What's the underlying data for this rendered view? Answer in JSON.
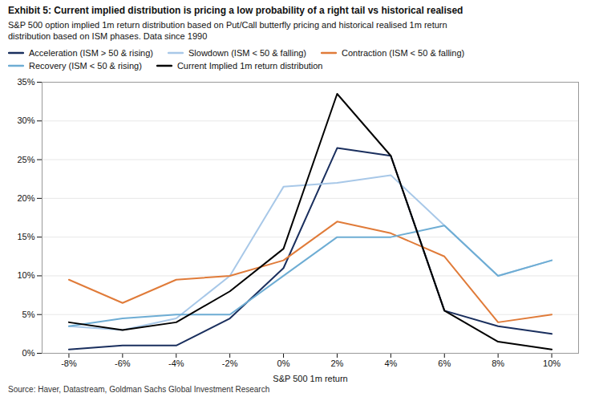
{
  "chart_data": {
    "type": "line",
    "title": "Exhibit 5: Current implied distribution is pricing a low probability of a right tail vs historical realised",
    "subtitle": "S&P 500 option implied 1m return distribution based on Put/Call butterfly pricing and historical realised 1m return\ndistribution based on ISM phases. Data since 1990",
    "source": "Source: Haver, Datastream, Goldman Sachs Global Investment Research",
    "xlabel": "S&P 500 1m return",
    "x": [
      -8,
      -6,
      -4,
      -2,
      0,
      2,
      4,
      6,
      8,
      10
    ],
    "series": [
      {
        "name": "Acceleration (ISM > 50 & rising)",
        "color": "#1a2f5e",
        "values": [
          0.5,
          1.0,
          1.0,
          4.5,
          11.0,
          26.5,
          25.5,
          5.5,
          3.5,
          2.5
        ]
      },
      {
        "name": "Slowdown (ISM < 50 & falling)",
        "color": "#a8c8e8",
        "values": [
          3.5,
          3.0,
          4.5,
          10.0,
          21.5,
          22.0,
          23.0,
          16.5,
          10.0,
          12.0
        ]
      },
      {
        "name": "Contraction (ISM < 50 & falling)",
        "color": "#e07b39",
        "values": [
          9.5,
          6.5,
          9.5,
          10.0,
          12.0,
          17.0,
          15.5,
          12.5,
          4.0,
          5.0
        ]
      },
      {
        "name": "Recovery (ISM < 50 & rising)",
        "color": "#6eadd4",
        "values": [
          3.5,
          4.5,
          5.0,
          5.0,
          10.0,
          15.0,
          15.0,
          16.5,
          10.0,
          12.0
        ]
      },
      {
        "name": "Current Implied 1m return distribution",
        "color": "#000000",
        "values": [
          4.0,
          3.0,
          4.0,
          8.0,
          13.5,
          33.5,
          25.5,
          5.5,
          1.5,
          0.5
        ]
      }
    ],
    "xlim": [
      -9,
      11
    ],
    "xticks": [
      {
        "value": -8,
        "label": "-8%"
      },
      {
        "value": -6,
        "label": "-6%"
      },
      {
        "value": -4,
        "label": "-4%"
      },
      {
        "value": -2,
        "label": "-2%"
      },
      {
        "value": 0,
        "label": "0%"
      },
      {
        "value": 2,
        "label": "2%"
      },
      {
        "value": 4,
        "label": "4%"
      },
      {
        "value": 6,
        "label": "6%"
      },
      {
        "value": 8,
        "label": "8%"
      },
      {
        "value": 10,
        "label": "10%"
      }
    ],
    "ylim": [
      0,
      35
    ],
    "yticks": [
      {
        "value": 0,
        "label": "0%"
      },
      {
        "value": 5,
        "label": "5%"
      },
      {
        "value": 10,
        "label": "10%"
      },
      {
        "value": 15,
        "label": "15%"
      },
      {
        "value": 20,
        "label": "20%"
      },
      {
        "value": 25,
        "label": "25%"
      },
      {
        "value": 30,
        "label": "30%"
      },
      {
        "value": 35,
        "label": "35%"
      }
    ],
    "grid": true,
    "legend": "top"
  }
}
